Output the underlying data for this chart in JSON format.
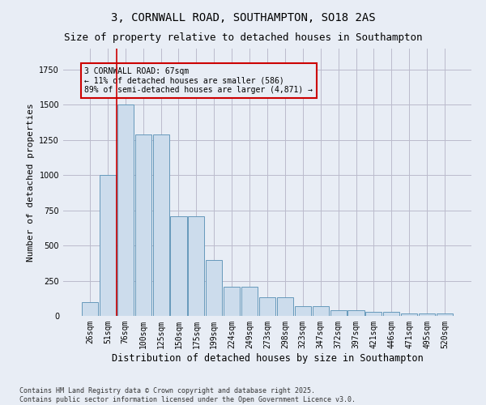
{
  "title": "3, CORNWALL ROAD, SOUTHAMPTON, SO18 2AS",
  "subtitle": "Size of property relative to detached houses in Southampton",
  "xlabel": "Distribution of detached houses by size in Southampton",
  "ylabel": "Number of detached properties",
  "categories": [
    "26sqm",
    "51sqm",
    "76sqm",
    "100sqm",
    "125sqm",
    "150sqm",
    "175sqm",
    "199sqm",
    "224sqm",
    "249sqm",
    "273sqm",
    "298sqm",
    "323sqm",
    "347sqm",
    "372sqm",
    "397sqm",
    "421sqm",
    "446sqm",
    "471sqm",
    "495sqm",
    "520sqm"
  ],
  "values": [
    100,
    1000,
    1500,
    1290,
    1290,
    710,
    710,
    400,
    210,
    210,
    130,
    130,
    70,
    70,
    40,
    40,
    28,
    28,
    15,
    15,
    15
  ],
  "bar_color": "#ccdcec",
  "bar_edge_color": "#6699bb",
  "grid_color": "#bbbbcc",
  "bg_color": "#e8edf5",
  "vline_color": "#cc0000",
  "vline_pos": 1.5,
  "annotation_text": "3 CORNWALL ROAD: 67sqm\n← 11% of detached houses are smaller (586)\n89% of semi-detached houses are larger (4,871) →",
  "annotation_box_color": "#cc0000",
  "footer_line1": "Contains HM Land Registry data © Crown copyright and database right 2025.",
  "footer_line2": "Contains public sector information licensed under the Open Government Licence v3.0.",
  "ylim": [
    0,
    1900
  ],
  "title_fontsize": 10,
  "subtitle_fontsize": 9,
  "ylabel_fontsize": 8,
  "xlabel_fontsize": 8.5,
  "tick_fontsize": 7,
  "annot_fontsize": 7,
  "footer_fontsize": 6
}
